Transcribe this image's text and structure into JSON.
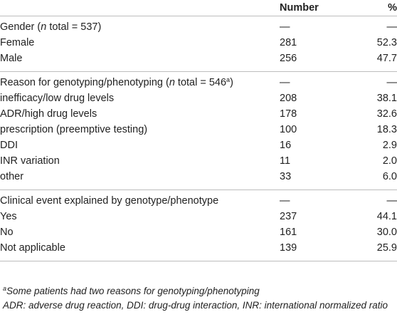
{
  "header": {
    "number": "Number",
    "percent": "%"
  },
  "sections": [
    {
      "title_pre": "Gender (",
      "title_n": "n",
      "title_post": " total = 537)",
      "title_sup": "",
      "dash_number": "—",
      "dash_percent": "—",
      "rows": [
        {
          "label": "Female",
          "number": "281",
          "percent": "52.3"
        },
        {
          "label": "Male",
          "number": "256",
          "percent": "47.7"
        }
      ]
    },
    {
      "title_pre": "Reason for genotyping/phenotyping (",
      "title_n": "n",
      "title_post": " total = 546",
      "title_sup": "a",
      "title_close": ")",
      "dash_number": "—",
      "dash_percent": "—",
      "rows": [
        {
          "label": "inefficacy/low drug levels",
          "number": "208",
          "percent": "38.1"
        },
        {
          "label": "ADR/high drug levels",
          "number": "178",
          "percent": "32.6"
        },
        {
          "label": "prescription (preemptive testing)",
          "number": "100",
          "percent": "18.3"
        },
        {
          "label": "DDI",
          "number": "16",
          "percent": "2.9"
        },
        {
          "label": "INR variation",
          "number": "11",
          "percent": "2.0"
        },
        {
          "label": "other",
          "number": "33",
          "percent": "6.0"
        }
      ]
    },
    {
      "title": "Clinical event explained by genotype/phenotype",
      "dash_number": "—",
      "dash_percent": "—",
      "rows": [
        {
          "label": "Yes",
          "number": "237",
          "percent": "44.1"
        },
        {
          "label": "No",
          "number": "161",
          "percent": "30.0"
        },
        {
          "label": "Not applicable",
          "number": "139",
          "percent": "25.9"
        }
      ]
    }
  ],
  "footnotes": {
    "a_marker": "a",
    "a_text": "Some patients had two reasons for genotyping/phenotyping",
    "abbrev": "ADR: adverse drug reaction, DDI: drug-drug interaction, INR: international normalized ratio"
  }
}
